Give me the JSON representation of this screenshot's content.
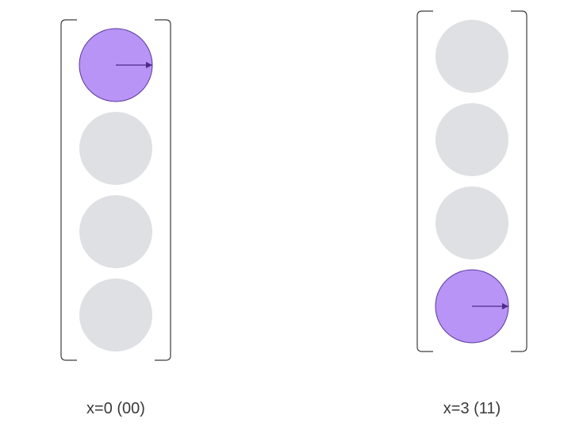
{
  "colors": {
    "background": "#ffffff",
    "bracket": "#3c3c3c",
    "inactive": "#dee0e3",
    "active_fill": "#b794f6",
    "active_stroke": "#5b3a9e",
    "arrow": "#4c2a8a",
    "caption": "#3a3a3a"
  },
  "vectors": [
    {
      "id": "vector-x0",
      "caption": "x=0 (00)",
      "value": 0,
      "binary": "00",
      "num_states": 4,
      "active_index": 0,
      "amplitude_phase_deg": 0
    },
    {
      "id": "vector-x3",
      "caption": "x=3 (11)",
      "value": 3,
      "binary": "11",
      "num_states": 4,
      "active_index": 3,
      "amplitude_phase_deg": 0
    }
  ]
}
